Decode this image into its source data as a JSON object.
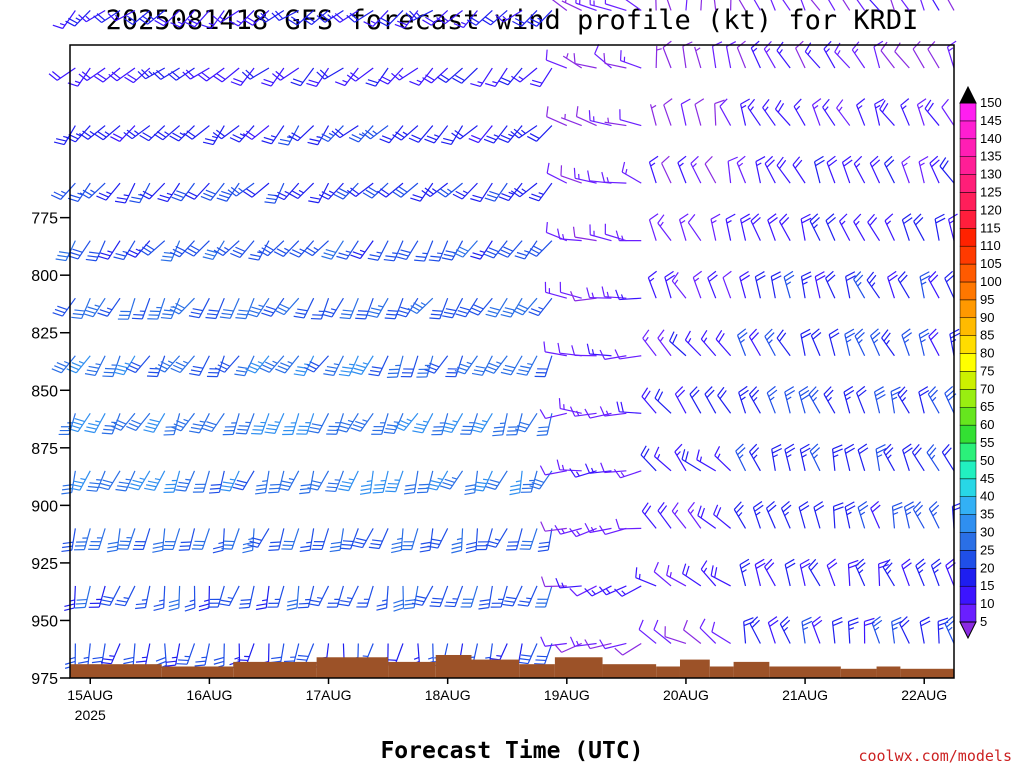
{
  "title": "2025081418 GFS forecast wind profile (kt) for KRDI",
  "credit": "coolwx.com/models",
  "colors": {
    "terrain": "#9c5228",
    "frame": "#000000",
    "background": "#ffffff",
    "credit": "#cc2222"
  },
  "chart_data": {
    "type": "wind-barb",
    "title": "2025081418 GFS forecast wind profile (kt) for KRDI",
    "xlabel": "Forecast Time (UTC)",
    "ylabel": "",
    "units": "kt",
    "x_day_range": [
      14.83,
      22.25
    ],
    "y_range_hpa": [
      975,
      700
    ],
    "y_ticks": [
      {
        "value": 775,
        "label": "775"
      },
      {
        "value": 800,
        "label": "800"
      },
      {
        "value": 825,
        "label": "825"
      },
      {
        "value": 850,
        "label": "850"
      },
      {
        "value": 875,
        "label": "875"
      },
      {
        "value": 900,
        "label": "900"
      },
      {
        "value": 925,
        "label": "925"
      },
      {
        "value": 950,
        "label": "950"
      },
      {
        "value": 975,
        "label": "975"
      }
    ],
    "x_ticks": [
      {
        "day": 15,
        "label": "15AUG",
        "sublabel": "2025"
      },
      {
        "day": 16,
        "label": "16AUG",
        "sublabel": ""
      },
      {
        "day": 17,
        "label": "17AUG",
        "sublabel": ""
      },
      {
        "day": 18,
        "label": "18AUG",
        "sublabel": ""
      },
      {
        "day": 19,
        "label": "19AUG",
        "sublabel": ""
      },
      {
        "day": 20,
        "label": "20AUG",
        "sublabel": ""
      },
      {
        "day": 21,
        "label": "21AUG",
        "sublabel": ""
      },
      {
        "day": 22,
        "label": "22AUG",
        "sublabel": ""
      }
    ],
    "levels_hpa": [
      685,
      710,
      735,
      760,
      785,
      810,
      835,
      860,
      885,
      910,
      935,
      960
    ],
    "regimes": [
      {
        "start_day": 14.83,
        "end_day": 19.0,
        "dir_top": 230,
        "dir_bottom": 190,
        "spd_top": 20,
        "spd_mid": 35,
        "spd_bottom": 20
      },
      {
        "start_day": 19.0,
        "end_day": 19.75,
        "dir_top": 300,
        "dir_bottom": 250,
        "spd_top": 10,
        "spd_mid": 15,
        "spd_bottom": 10
      },
      {
        "start_day": 19.75,
        "end_day": 20.5,
        "dir_top": 355,
        "dir_bottom": 300,
        "spd_top": 8,
        "spd_mid": 20,
        "spd_bottom": 8
      },
      {
        "start_day": 20.5,
        "end_day": 22.25,
        "dir_top": 330,
        "dir_bottom": 345,
        "spd_top": 12,
        "spd_mid": 25,
        "spd_bottom": 20
      }
    ],
    "terrain_steps": [
      {
        "day": 14.83,
        "level_hpa": 969
      },
      {
        "day": 15.6,
        "level_hpa": 970
      },
      {
        "day": 16.2,
        "level_hpa": 968
      },
      {
        "day": 16.9,
        "level_hpa": 966
      },
      {
        "day": 17.5,
        "level_hpa": 968
      },
      {
        "day": 17.9,
        "level_hpa": 965
      },
      {
        "day": 18.2,
        "level_hpa": 967
      },
      {
        "day": 18.6,
        "level_hpa": 969
      },
      {
        "day": 18.9,
        "level_hpa": 966
      },
      {
        "day": 19.3,
        "level_hpa": 969
      },
      {
        "day": 19.75,
        "level_hpa": 970
      },
      {
        "day": 19.95,
        "level_hpa": 967
      },
      {
        "day": 20.2,
        "level_hpa": 970
      },
      {
        "day": 20.4,
        "level_hpa": 968
      },
      {
        "day": 20.7,
        "level_hpa": 970
      },
      {
        "day": 21.3,
        "level_hpa": 971
      },
      {
        "day": 21.6,
        "level_hpa": 970
      },
      {
        "day": 21.8,
        "level_hpa": 971
      },
      {
        "day": 22.25,
        "level_hpa": 970
      }
    ],
    "colorbar": {
      "labels": [
        5,
        10,
        15,
        20,
        25,
        30,
        35,
        40,
        45,
        50,
        55,
        60,
        65,
        70,
        75,
        80,
        85,
        90,
        95,
        100,
        105,
        110,
        115,
        120,
        125,
        130,
        135,
        140,
        145,
        150
      ],
      "colors": [
        "#8a2be2",
        "#6a1fff",
        "#3c14ff",
        "#1e1ef0",
        "#1f4fe8",
        "#2a6fe6",
        "#2f8ff0",
        "#33b0f5",
        "#28d7e6",
        "#22f0c0",
        "#2bf07a",
        "#33e033",
        "#66e61e",
        "#99ee11",
        "#ccf000",
        "#ffff00",
        "#ffdd00",
        "#ffbb00",
        "#ff9900",
        "#ff7700",
        "#ff5a00",
        "#ff3a00",
        "#ff2200",
        "#ff1e3c",
        "#ff1e5a",
        "#ff1e78",
        "#ff1e96",
        "#ff1eb4",
        "#ff1ed2",
        "#ff1ef0"
      ]
    }
  }
}
